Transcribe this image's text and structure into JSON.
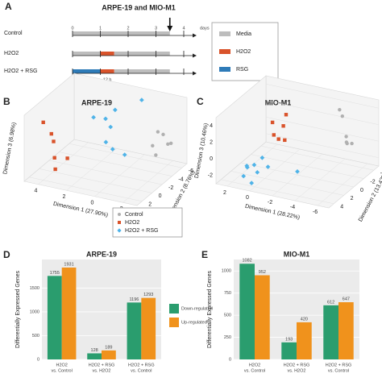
{
  "chart_data": [
    {
      "type": "timeline",
      "panel": "A",
      "title": "ARPE-19 and MIO-M1",
      "xlim": [
        0,
        4
      ],
      "xticks": [
        0,
        1,
        2,
        3,
        4
      ],
      "x_label": "days",
      "arrow_at": 3.5,
      "rows": [
        {
          "name": "Control",
          "segments": [
            {
              "start": 0,
              "end": 3.5,
              "color": "#bdbdbd"
            }
          ]
        },
        {
          "name": "H2O2",
          "segments": [
            {
              "start": 0,
              "end": 1,
              "color": "#bdbdbd"
            },
            {
              "start": 1,
              "end": 1.5,
              "color": "#d9532b"
            },
            {
              "start": 1.5,
              "end": 3.5,
              "color": "#bdbdbd"
            }
          ]
        },
        {
          "name": "H2O2 + RSG",
          "segments": [
            {
              "start": 0,
              "end": 1,
              "color": "#2e7bb8"
            },
            {
              "start": 1,
              "end": 1.5,
              "color": "#d9532b"
            },
            {
              "start": 1.5,
              "end": 3.5,
              "color": "#bdbdbd"
            }
          ]
        }
      ],
      "annotations": [
        {
          "text": "24 h",
          "start": 0,
          "end": 1
        },
        {
          "text": "12 h",
          "start": 1,
          "end": 1.5
        }
      ],
      "legend": [
        {
          "name": "Media",
          "color": "#bdbdbd"
        },
        {
          "name": "H2O2",
          "color": "#d9532b"
        },
        {
          "name": "RSG",
          "color": "#2e7bb8"
        }
      ]
    },
    {
      "type": "scatter3d",
      "panel": "B",
      "title": "ARPE-19",
      "x_label": "Dimension 1 (27.90%)",
      "y_label": "Dimension 2 (8.76%)",
      "z_label": "Dimension 3 (6.98%)",
      "xlim": [
        5,
        -3
      ],
      "xticks": [
        4,
        2,
        0,
        -2
      ],
      "ylim": [
        3,
        -7
      ],
      "yticks": [
        2,
        0,
        -2,
        -4,
        -6
      ],
      "zlim": [
        -4,
        4
      ],
      "legend": "bottom",
      "series": [
        {
          "name": "Control",
          "color": "#b0b0b0",
          "shape": "circle",
          "x": [
            -2,
            -2.2,
            -1.8,
            -2,
            -1.5,
            -2.4
          ],
          "y": [
            -4,
            -4.5,
            -3.5,
            -6,
            -5,
            -5.5
          ],
          "z": [
            1,
            0.5,
            -0.5,
            -1.5,
            -2.5,
            -1
          ]
        },
        {
          "name": "H2O2",
          "color": "#d9532b",
          "shape": "square",
          "x": [
            4,
            3.6,
            3.8,
            3.2,
            3,
            3.5
          ],
          "y": [
            2,
            1.5,
            0.5,
            2,
            0,
            1
          ],
          "z": [
            3,
            1.5,
            0,
            -1,
            -2,
            -3
          ]
        },
        {
          "name": "H2O2 + RSG",
          "color": "#4fb3e8",
          "shape": "diamond",
          "x": [
            1.5,
            1,
            0.5,
            1,
            0.8,
            0.5,
            0,
            -0.5
          ],
          "y": [
            -1,
            -2,
            -2.5,
            -3,
            -1.5,
            -2,
            -3,
            -5
          ],
          "z": [
            3,
            2.5,
            3.5,
            1,
            0,
            -1,
            -2,
            3.8
          ]
        }
      ]
    },
    {
      "type": "scatter3d",
      "panel": "C",
      "title": "MIO-M1",
      "x_label": "Dimension 1 (28.22%)",
      "y_label": "Dimension 2 (13.42%)",
      "z_label": "Dimension 3 (10.46%)",
      "xlim": [
        3,
        -7
      ],
      "xticks": [
        2,
        0,
        -2,
        -4,
        -6
      ],
      "ylim": [
        5,
        -5
      ],
      "yticks": [
        4,
        2,
        0,
        -2,
        -4
      ],
      "zlim": [
        -3,
        5
      ],
      "zticks": [
        4,
        2,
        0,
        -2
      ],
      "series": [
        {
          "color": "#b0b0b0",
          "shape": "circle",
          "x": [
            -5,
            -5.3,
            -4.8,
            -5.5,
            -5.1,
            -4.5
          ],
          "y": [
            -3,
            -2.5,
            -3.5,
            -3,
            -2,
            -2.8
          ],
          "z": [
            1,
            0.5,
            0,
            0.3,
            4,
            4.2
          ]
        },
        {
          "color": "#d9532b",
          "shape": "square",
          "x": [
            -1,
            -1.2,
            -0.8,
            -1,
            -1.1,
            -0.9
          ],
          "y": [
            0,
            1,
            2,
            1.5,
            0.5,
            2.5
          ],
          "z": [
            4,
            3.2,
            2.5,
            1.8,
            1.2,
            4.3
          ]
        },
        {
          "color": "#4fb3e8",
          "shape": "diamond",
          "x": [
            0.5,
            0,
            1,
            -0.5,
            0.8,
            0.2,
            -2,
            1.2,
            -0.3
          ],
          "y": [
            3,
            3.5,
            4,
            2.5,
            3.8,
            4.2,
            0,
            2.8,
            3.2
          ],
          "z": [
            -1,
            -1.5,
            -2,
            -1.2,
            -0.8,
            -2.5,
            -2.6,
            -1.6,
            0.2
          ]
        }
      ]
    },
    {
      "type": "bar",
      "panel": "D",
      "title": "ARPE-19",
      "y_label": "Differentially Expressed Genes",
      "categories": [
        [
          "H2O2",
          "vs. Control"
        ],
        [
          "H2O2 + RSG",
          "vs. H2O2"
        ],
        [
          "H2O2 + RSG",
          "vs. Control"
        ]
      ],
      "ylim": [
        0,
        2100
      ],
      "yticks": [
        0,
        500,
        1000,
        1500
      ],
      "grid": true,
      "legend": "right",
      "series": [
        {
          "name": "Down-regulated",
          "color": "#2a9d6e",
          "values": [
            1755,
            128,
            1196
          ]
        },
        {
          "name": "Up-regulated",
          "color": "#f0921c",
          "values": [
            1931,
            189,
            1293
          ]
        }
      ]
    },
    {
      "type": "bar",
      "panel": "E",
      "title": "MIO-M1",
      "y_label": "Differentially Expressed Genes",
      "categories": [
        [
          "H2O2",
          "vs. Control"
        ],
        [
          "H2O2 + RSG",
          "vs. H2O2"
        ],
        [
          "H2O2 + RSG",
          "vs. Control"
        ]
      ],
      "ylim": [
        0,
        1130
      ],
      "yticks": [
        0,
        250,
        500,
        750,
        1000
      ],
      "grid": true,
      "series": [
        {
          "color": "#2a9d6e",
          "values": [
            1082,
            193,
            612
          ]
        },
        {
          "color": "#f0921c",
          "values": [
            952,
            420,
            647
          ]
        }
      ]
    }
  ]
}
